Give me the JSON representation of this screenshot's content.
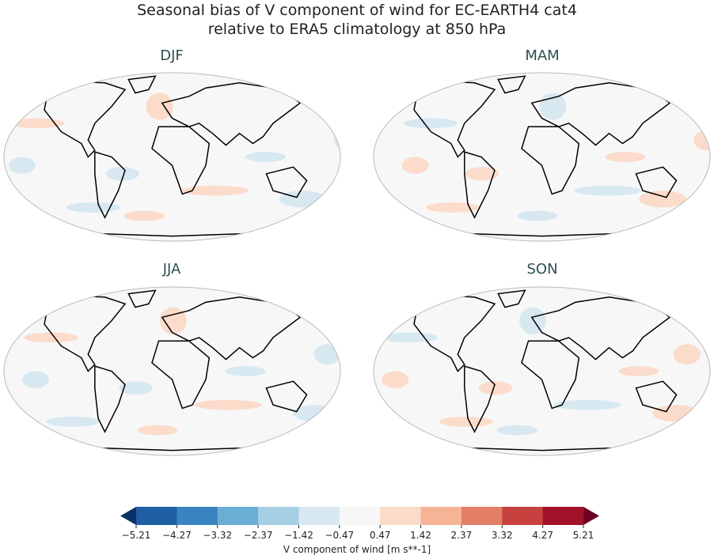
{
  "title_line1": "Seasonal bias of V component of wind for EC-EARTH4 cat4",
  "title_line2": "relative to ERA5 climatology at 850 hPa",
  "panels": [
    {
      "label": "DJF"
    },
    {
      "label": "MAM"
    },
    {
      "label": "JJA"
    },
    {
      "label": "SON"
    }
  ],
  "projection": "Robinson",
  "colorbar": {
    "label": "V component of wind [m s**-1]",
    "ticks": [
      "−5.21",
      "−4.27",
      "−3.32",
      "−2.37",
      "−1.42",
      "−0.47",
      "0.47",
      "1.42",
      "2.37",
      "3.32",
      "4.27",
      "5.21"
    ],
    "extend": "both",
    "colors": [
      "#0b3264",
      "#1f5fa5",
      "#3984c0",
      "#6aaed3",
      "#a7cfe4",
      "#d7e8f1",
      "#f7f7f7",
      "#fbdbca",
      "#f5b496",
      "#e37f66",
      "#c7413f",
      "#a11228",
      "#6a0220"
    ]
  }
}
